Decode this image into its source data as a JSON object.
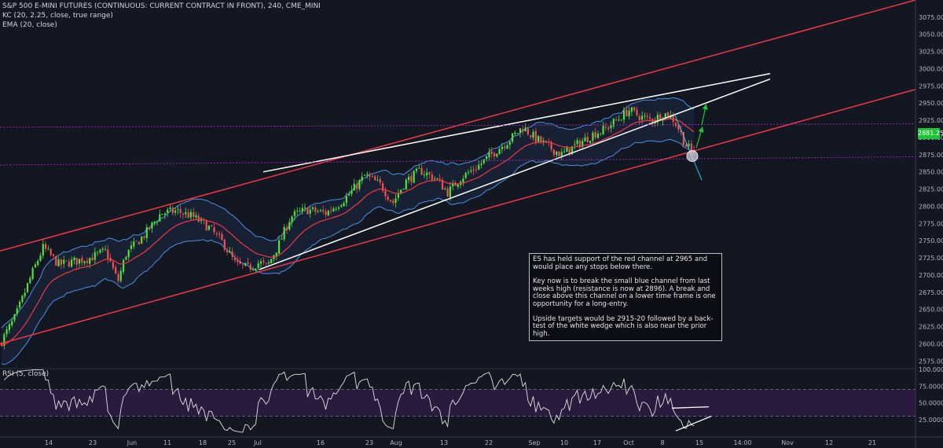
{
  "chart_data": {
    "type": "candlestick",
    "title": "S&P 500 E-MINI FUTURES (CONTINUOUS: CURRENT CONTRACT IN FRONT), 240, CME_MINI",
    "indicators": [
      "KC (20, 2.25, close, true range)",
      "EMA (20, close)"
    ],
    "price_axis": {
      "ylim": [
        2565,
        3100
      ],
      "ticks": [
        3075,
        3050,
        3025,
        3000,
        2975,
        2950,
        2925,
        2900,
        2875,
        2850,
        2825,
        2800,
        2775,
        2750,
        2725,
        2700,
        2675,
        2650,
        2625,
        2600,
        2575
      ],
      "tick_labels": [
        "3075.00",
        "3050.00",
        "3025.00",
        "3000.00",
        "2975.00",
        "2950.00",
        "2925.00",
        "2900.00",
        "2875.00",
        "2850.00",
        "2825.00",
        "2800.00",
        "2775.00",
        "2750.00",
        "2725.00",
        "2700.00",
        "2675.00",
        "2650.00",
        "2625.00",
        "2600.00",
        "2575.00"
      ]
    },
    "last_price": {
      "value": 2881.25,
      "label": "2881.25",
      "color": "#1ec337"
    },
    "time_axis": {
      "labels": [
        "14",
        "23",
        "Jun",
        "11",
        "18",
        "25",
        "Jul",
        "16",
        "23",
        "Aug",
        "13",
        "22",
        "Sep",
        "10",
        "17",
        "Oct",
        "8",
        "15",
        "14:00",
        "Nov",
        "12",
        "21"
      ],
      "positions": [
        62,
        118,
        168,
        213,
        258,
        295,
        328,
        408,
        470,
        504,
        565,
        622,
        680,
        718,
        760,
        800,
        843,
        890,
        945,
        1002,
        1055,
        1110
      ],
      "xlim": [
        0,
        1165
      ]
    },
    "price_key_points": [
      {
        "x": 0,
        "y": 2600
      },
      {
        "x": 20,
        "y": 2640
      },
      {
        "x": 40,
        "y": 2700
      },
      {
        "x": 55,
        "y": 2740
      },
      {
        "x": 75,
        "y": 2715
      },
      {
        "x": 95,
        "y": 2720
      },
      {
        "x": 115,
        "y": 2725
      },
      {
        "x": 135,
        "y": 2735
      },
      {
        "x": 150,
        "y": 2690
      },
      {
        "x": 160,
        "y": 2730
      },
      {
        "x": 185,
        "y": 2760
      },
      {
        "x": 205,
        "y": 2790
      },
      {
        "x": 225,
        "y": 2793
      },
      {
        "x": 245,
        "y": 2785
      },
      {
        "x": 265,
        "y": 2770
      },
      {
        "x": 285,
        "y": 2745
      },
      {
        "x": 300,
        "y": 2715
      },
      {
        "x": 315,
        "y": 2710
      },
      {
        "x": 330,
        "y": 2718
      },
      {
        "x": 340,
        "y": 2712
      },
      {
        "x": 355,
        "y": 2745
      },
      {
        "x": 370,
        "y": 2785
      },
      {
        "x": 390,
        "y": 2795
      },
      {
        "x": 415,
        "y": 2790
      },
      {
        "x": 440,
        "y": 2812
      },
      {
        "x": 465,
        "y": 2845
      },
      {
        "x": 485,
        "y": 2830
      },
      {
        "x": 500,
        "y": 2805
      },
      {
        "x": 515,
        "y": 2835
      },
      {
        "x": 535,
        "y": 2852
      },
      {
        "x": 555,
        "y": 2840
      },
      {
        "x": 570,
        "y": 2820
      },
      {
        "x": 585,
        "y": 2840
      },
      {
        "x": 610,
        "y": 2860
      },
      {
        "x": 630,
        "y": 2880
      },
      {
        "x": 650,
        "y": 2898
      },
      {
        "x": 665,
        "y": 2915
      },
      {
        "x": 680,
        "y": 2900
      },
      {
        "x": 700,
        "y": 2885
      },
      {
        "x": 715,
        "y": 2875
      },
      {
        "x": 735,
        "y": 2890
      },
      {
        "x": 755,
        "y": 2905
      },
      {
        "x": 770,
        "y": 2912
      },
      {
        "x": 790,
        "y": 2930
      },
      {
        "x": 800,
        "y": 2940
      },
      {
        "x": 815,
        "y": 2930
      },
      {
        "x": 830,
        "y": 2925
      },
      {
        "x": 845,
        "y": 2935
      },
      {
        "x": 855,
        "y": 2930
      },
      {
        "x": 865,
        "y": 2910
      },
      {
        "x": 872,
        "y": 2890
      },
      {
        "x": 880,
        "y": 2880
      },
      {
        "x": 884,
        "y": 2881
      }
    ],
    "lines": [
      {
        "name": "red-channel-upper",
        "color": "#f23645",
        "width": 1.5,
        "from": {
          "x": 0,
          "y": 2735
        },
        "to": {
          "x": 1165,
          "y": 3100
        }
      },
      {
        "name": "red-channel-lower",
        "color": "#f23645",
        "width": 1.5,
        "from": {
          "x": 0,
          "y": 2600
        },
        "to": {
          "x": 1165,
          "y": 2970
        }
      },
      {
        "name": "white-wedge-upper",
        "color": "#ffffff",
        "width": 1.5,
        "from": {
          "x": 335,
          "y": 2850
        },
        "to": {
          "x": 980,
          "y": 2993
        }
      },
      {
        "name": "white-wedge-lower",
        "color": "#ffffff",
        "width": 1.5,
        "from": {
          "x": 330,
          "y": 2708
        },
        "to": {
          "x": 980,
          "y": 2985
        }
      },
      {
        "name": "purple-resistance",
        "color": "#9c27b0",
        "width": 1,
        "dash": "2,2",
        "from": {
          "x": 0,
          "y": 2915
        },
        "to": {
          "x": 1165,
          "y": 2920
        }
      },
      {
        "name": "purple-support",
        "color": "#9c27b0",
        "width": 1,
        "dash": "2,2",
        "from": {
          "x": 0,
          "y": 2860
        },
        "to": {
          "x": 1165,
          "y": 2872
        }
      },
      {
        "name": "blue-small-channel",
        "color": "#26c6da",
        "width": 1,
        "from": {
          "x": 858,
          "y": 2935
        },
        "to": {
          "x": 893,
          "y": 2838
        }
      }
    ],
    "arrows": [
      {
        "name": "green-arrow-up-1",
        "color": "#1ec337",
        "from": {
          "x": 886,
          "y": 2885
        },
        "to": {
          "x": 893,
          "y": 2912
        }
      },
      {
        "name": "green-arrow-up-2",
        "color": "#1ec337",
        "from": {
          "x": 893,
          "y": 2918
        },
        "to": {
          "x": 898,
          "y": 2945
        }
      }
    ],
    "markers": [
      {
        "name": "support-circle",
        "color": "#d1d4dc",
        "center": {
          "x": 881,
          "y": 2873
        },
        "radius_price": 5
      }
    ],
    "rsi": {
      "label": "RSI (5, close)",
      "ylim": [
        0,
        100
      ],
      "upper_band": 70,
      "lower_band": 30,
      "tick_labels": [
        "100.0000",
        "75.0000",
        "50.0000",
        "25.0000"
      ],
      "ticks": [
        100,
        75,
        50,
        25
      ],
      "trendlines": [
        {
          "name": "rsi-trend-upper",
          "from": {
            "x": 855,
            "y": 42
          },
          "to": {
            "x": 902,
            "y": 44
          }
        },
        {
          "name": "rsi-trend-lower",
          "from": {
            "x": 860,
            "y": 8
          },
          "to": {
            "x": 905,
            "y": 30
          }
        }
      ]
    }
  },
  "annotation": {
    "p1": "ES has held support of the red channel at 2965 and would place any stops below there.",
    "p2": "Key now is to break the small blue channel from last weeks high (resistance is now at 2896). A break and close above this channel on a lower time frame is one opportunity for a long-entry.",
    "p3": "Upside targets would be 2915-20 followed by a back-test of the white wedge which is also near the prior high."
  },
  "colors": {
    "background": "#131722",
    "up_candle": "#53e03a",
    "down_candle": "#ef5350",
    "ema": "#f23645",
    "kc": "#4a90e2",
    "rsi_line": "#e0e0e0",
    "rsi_band_fill": "#2a1a3e"
  }
}
